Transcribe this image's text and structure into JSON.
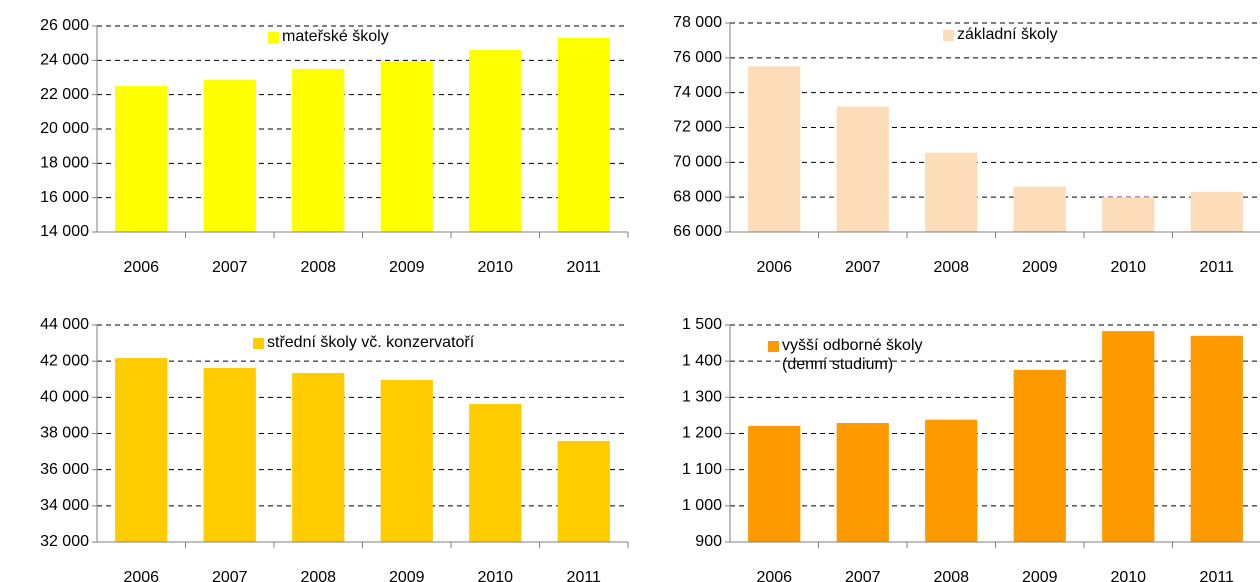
{
  "chart_data": [
    {
      "type": "bar",
      "categories": [
        "2006",
        "2007",
        "2008",
        "2009",
        "2010",
        "2011"
      ],
      "series": [
        {
          "name": "mateřské školy",
          "color": "#ffff00",
          "values": [
            22500,
            22850,
            23500,
            23950,
            24600,
            25300
          ]
        }
      ],
      "ylim": [
        14000,
        26000
      ],
      "yticks": [
        {
          "value": 14000,
          "label": "14 000"
        },
        {
          "value": 16000,
          "label": "16 000"
        },
        {
          "value": 18000,
          "label": "18 000"
        },
        {
          "value": 20000,
          "label": "20 000"
        },
        {
          "value": 22000,
          "label": "22 000"
        },
        {
          "value": 24000,
          "label": "24 000"
        },
        {
          "value": 26000,
          "label": "26 000"
        }
      ],
      "grid": true
    },
    {
      "type": "bar",
      "categories": [
        "2006",
        "2007",
        "2008",
        "2009",
        "2010",
        "2011"
      ],
      "series": [
        {
          "name": "základní školy",
          "color": "#fddcb9",
          "values": [
            75500,
            73200,
            70550,
            68600,
            68000,
            68300
          ]
        }
      ],
      "ylim": [
        66000,
        78000
      ],
      "yticks": [
        {
          "value": 66000,
          "label": "66 000"
        },
        {
          "value": 68000,
          "label": "68 000"
        },
        {
          "value": 70000,
          "label": "70 000"
        },
        {
          "value": 72000,
          "label": "72 000"
        },
        {
          "value": 74000,
          "label": "74 000"
        },
        {
          "value": 76000,
          "label": "76 000"
        },
        {
          "value": 78000,
          "label": "78 000"
        }
      ],
      "grid": true
    },
    {
      "type": "bar",
      "categories": [
        "2006",
        "2007",
        "2008",
        "2009",
        "2010",
        "2011"
      ],
      "series": [
        {
          "name": "střední školy vč. konzervatoří",
          "color": "#ffcc00",
          "values": [
            42170,
            41620,
            41350,
            40960,
            39630,
            37590
          ]
        }
      ],
      "ylim": [
        32000,
        44000
      ],
      "yticks": [
        {
          "value": 32000,
          "label": "32 000"
        },
        {
          "value": 34000,
          "label": "34 000"
        },
        {
          "value": 36000,
          "label": "36 000"
        },
        {
          "value": 38000,
          "label": "38 000"
        },
        {
          "value": 40000,
          "label": "40 000"
        },
        {
          "value": 42000,
          "label": "42 000"
        },
        {
          "value": 44000,
          "label": "44 000"
        }
      ],
      "grid": true
    },
    {
      "type": "bar",
      "categories": [
        "2006",
        "2007",
        "2008",
        "2009",
        "2010",
        "2011"
      ],
      "series": [
        {
          "name": "vyšší odborné školy\n(denní studium)",
          "color": "#ff9900",
          "values": [
            1221,
            1229,
            1238,
            1376,
            1483,
            1470
          ]
        }
      ],
      "ylim": [
        900,
        1500
      ],
      "yticks": [
        900,
        {
          "value": 1000,
          "label": "1 000"
        },
        {
          "value": 1100,
          "label": "1 100"
        },
        {
          "value": 1200,
          "label": "1 200"
        },
        {
          "value": 1300,
          "label": "1 300"
        },
        {
          "value": 1400,
          "label": "1 400"
        },
        {
          "value": 1500,
          "label": "1 500"
        }
      ],
      "grid": true
    }
  ]
}
